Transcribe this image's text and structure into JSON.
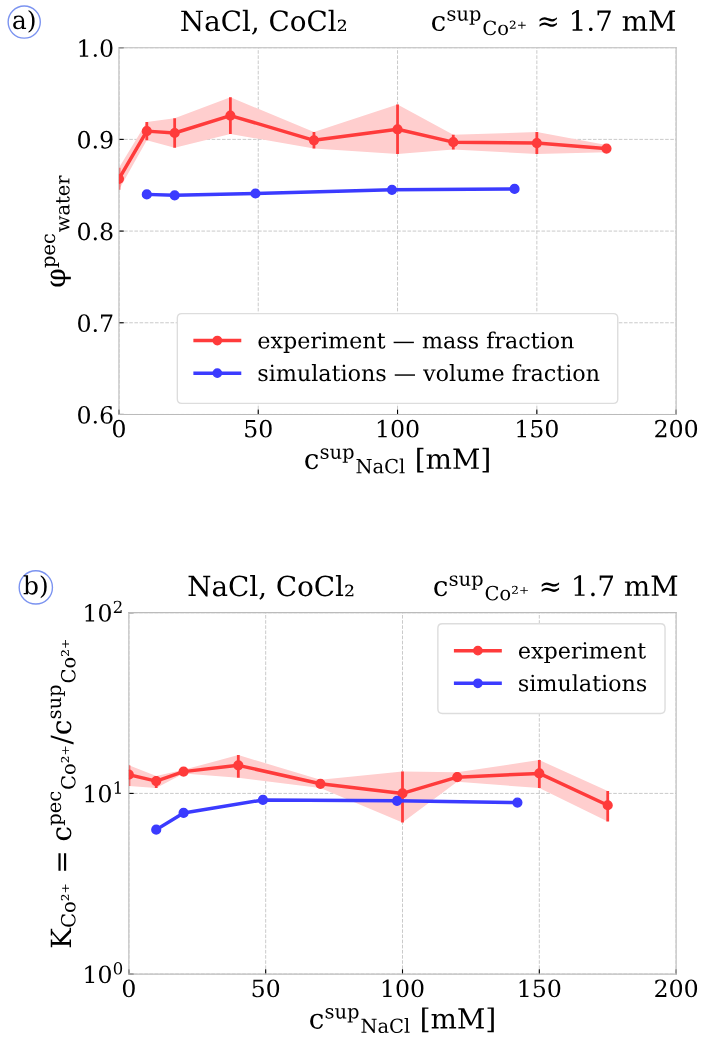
{
  "chart_data": [
    {
      "type": "line",
      "title": "NaCl, CoCl₂",
      "subtitle": "c$^{sup}$$_{Co²⁺}$ ≈ 1.7 mM",
      "xlabel": "c$^{sup}$$_{NaCl}$ [mM]",
      "ylabel": "φ$^{pec}$$_{water}$",
      "annotations": [
        "a)"
      ],
      "xlim": [
        0,
        200
      ],
      "xticks": [
        0,
        50,
        100,
        150,
        200
      ],
      "ylim": [
        0.6,
        1.0
      ],
      "yticks": [
        0.6,
        0.7,
        0.8,
        0.9,
        {
          "value": 1,
          "label": "1.0"
        }
      ],
      "grid": true,
      "legend": "bottom",
      "marker": "circle",
      "line_style": "solid",
      "series": [
        {
          "name": "experiment — mass fraction",
          "color": "#ff3b3b",
          "x": [
            0,
            10,
            20,
            40,
            70,
            100,
            120,
            150,
            175
          ],
          "values": [
            0.857,
            0.909,
            0.907,
            0.926,
            0.899,
            0.911,
            0.897,
            0.896,
            0.89
          ],
          "errors": [
            0.012,
            0.01,
            0.016,
            0.02,
            0.009,
            0.027,
            0.008,
            0.012,
            0.004
          ],
          "lower": [
            0.845,
            0.899,
            0.891,
            0.906,
            0.89,
            0.884,
            0.889,
            0.884,
            0.886
          ],
          "upper": [
            0.869,
            0.919,
            0.923,
            0.946,
            0.908,
            0.938,
            0.905,
            0.908,
            0.894
          ]
        },
        {
          "name": "simulations — volume fraction",
          "color": "#3b3bff",
          "x": [
            10,
            20,
            49,
            98,
            142
          ],
          "values": [
            0.84,
            0.839,
            0.841,
            0.845,
            0.846
          ]
        }
      ]
    },
    {
      "type": "line",
      "title": "NaCl, CoCl₂",
      "subtitle": "c$^{sup}$$_{Co²⁺}$ ≈ 1.7 mM",
      "xlabel": "c$^{sup}$$_{NaCl}$ [mM]",
      "ylabel": "K$_{Co²⁺}$ = c$^{pec}$$_{Co²⁺}$/c$^{sup}$$_{Co²⁺}$",
      "annotations": [
        "b)"
      ],
      "log": "y",
      "xlim": [
        0,
        200
      ],
      "xticks": [
        0,
        50,
        100,
        150,
        200
      ],
      "ylim": [
        1,
        100
      ],
      "yticks": [
        {
          "value": 1,
          "label": "10$^{0}$"
        },
        {
          "value": 10,
          "label": "10$^{1}$"
        },
        {
          "value": 100,
          "label": "10$^{2}$"
        }
      ],
      "grid": true,
      "legend": "top right",
      "marker": "circle",
      "line_style": "solid",
      "series": [
        {
          "name": "experiment",
          "color": "#ff3b3b",
          "x": [
            0,
            10,
            20,
            40,
            70,
            100,
            120,
            150,
            175
          ],
          "values": [
            12.7,
            11.7,
            13.2,
            14.3,
            11.3,
            10.0,
            12.3,
            12.9,
            8.6
          ],
          "errors": [
            [
              11.0,
              14.3
            ],
            [
              10.7,
              12.5
            ],
            [
              12.9,
              13.5
            ],
            [
              12.2,
              16.3
            ],
            [
              10.7,
              11.9
            ],
            [
              6.9,
              13.2
            ],
            [
              11.6,
              13.1
            ],
            [
              10.7,
              15.3
            ],
            [
              7.0,
              10.3
            ]
          ],
          "lower": [
            11.0,
            10.7,
            12.9,
            12.2,
            10.7,
            6.9,
            11.6,
            10.7,
            7.0
          ],
          "upper": [
            14.3,
            12.5,
            13.5,
            16.3,
            11.9,
            13.2,
            13.1,
            15.3,
            10.3
          ]
        },
        {
          "name": "simulations",
          "color": "#3b3bff",
          "x": [
            10,
            20,
            49,
            98,
            142
          ],
          "values": [
            6.3,
            7.8,
            9.2,
            9.1,
            8.9
          ]
        }
      ]
    }
  ]
}
